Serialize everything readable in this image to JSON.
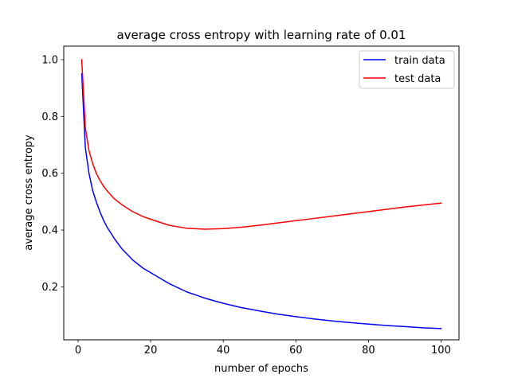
{
  "chart_data": {
    "type": "line",
    "title": "average cross entropy with learning rate of 0.01",
    "xlabel": "number of epochs",
    "ylabel": "average cross entropy",
    "xlim": [
      -3.95,
      104.95
    ],
    "ylim": [
      0.0135,
      1.0475
    ],
    "xticks": [
      0,
      20,
      40,
      60,
      80,
      100
    ],
    "yticks": [
      0.2,
      0.4,
      0.6,
      0.8,
      1.0
    ],
    "xtick_labels": [
      "0",
      "20",
      "40",
      "60",
      "80",
      "100"
    ],
    "ytick_labels": [
      "0.2",
      "0.4",
      "0.6",
      "0.8",
      "1.0"
    ],
    "grid": false,
    "legend": "top-right",
    "series": [
      {
        "name": "train data",
        "color": "#0000ff",
        "x": [
          1,
          2,
          3,
          4,
          5,
          6,
          7,
          8,
          10,
          12,
          15,
          18,
          20,
          25,
          30,
          35,
          40,
          45,
          50,
          55,
          60,
          65,
          70,
          75,
          80,
          85,
          90,
          95,
          100
        ],
        "y": [
          0.95,
          0.69,
          0.6,
          0.54,
          0.5,
          0.465,
          0.435,
          0.41,
          0.37,
          0.335,
          0.295,
          0.265,
          0.25,
          0.212,
          0.182,
          0.16,
          0.142,
          0.127,
          0.115,
          0.104,
          0.095,
          0.087,
          0.08,
          0.074,
          0.069,
          0.064,
          0.06,
          0.056,
          0.053
        ]
      },
      {
        "name": "test data",
        "color": "#ff0000",
        "x": [
          1,
          2,
          3,
          4,
          5,
          6,
          7,
          8,
          10,
          12,
          15,
          18,
          20,
          25,
          30,
          35,
          40,
          45,
          50,
          55,
          60,
          65,
          70,
          75,
          80,
          85,
          90,
          95,
          100
        ],
        "y": [
          1.0,
          0.76,
          0.68,
          0.635,
          0.6,
          0.575,
          0.555,
          0.538,
          0.51,
          0.49,
          0.465,
          0.447,
          0.438,
          0.417,
          0.406,
          0.403,
          0.405,
          0.41,
          0.417,
          0.425,
          0.433,
          0.441,
          0.449,
          0.457,
          0.465,
          0.473,
          0.481,
          0.488,
          0.495
        ]
      }
    ]
  }
}
